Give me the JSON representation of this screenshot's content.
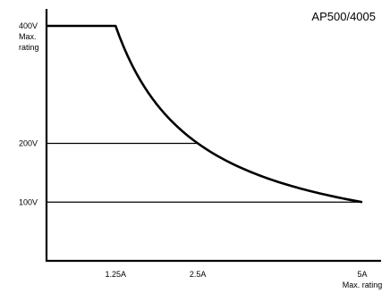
{
  "chart_data": {
    "type": "line",
    "title": "AP500/4005",
    "xlabel": "",
    "ylabel": "",
    "x_unit": "A",
    "y_unit": "V",
    "xlim": [
      0.2,
      5.1
    ],
    "ylim": [
      0,
      440
    ],
    "grid": false,
    "y_ticks": [
      {
        "value": 400,
        "label": "400V",
        "sublabels": [
          "Max.",
          "rating"
        ]
      },
      {
        "value": 200,
        "label": "200V",
        "sublabels": []
      },
      {
        "value": 100,
        "label": "100V",
        "sublabels": []
      }
    ],
    "x_ticks": [
      {
        "value": 1.25,
        "label": "1.25A",
        "sublabels": []
      },
      {
        "value": 2.5,
        "label": "2.5A",
        "sublabels": []
      },
      {
        "value": 5,
        "label": "5A",
        "sublabels": [
          "Max. rating"
        ]
      }
    ],
    "series": [
      {
        "name": "",
        "curve": "constant power 500W",
        "points": [
          [
            0.2,
            400
          ],
          [
            1.25,
            400
          ],
          [
            1.5,
            333.3
          ],
          [
            1.75,
            285.7
          ],
          [
            2.0,
            250
          ],
          [
            2.25,
            222.2
          ],
          [
            2.5,
            200
          ],
          [
            3.0,
            166.7
          ],
          [
            3.5,
            142.9
          ],
          [
            4.0,
            125
          ],
          [
            4.5,
            111.1
          ],
          [
            5.0,
            100
          ]
        ]
      }
    ],
    "reference_lines": [
      {
        "from": [
          0.2,
          400
        ],
        "to": [
          1.25,
          400
        ]
      },
      {
        "from": [
          0.2,
          200
        ],
        "to": [
          2.5,
          200
        ]
      },
      {
        "from": [
          0.2,
          100
        ],
        "to": [
          5,
          100
        ]
      },
      {
        "from": [
          1.25,
          0
        ],
        "to": [
          1.25,
          400
        ]
      },
      {
        "from": [
          2.5,
          0
        ],
        "to": [
          2.5,
          200
        ]
      },
      {
        "from": [
          5,
          0
        ],
        "to": [
          5,
          100
        ]
      }
    ]
  }
}
